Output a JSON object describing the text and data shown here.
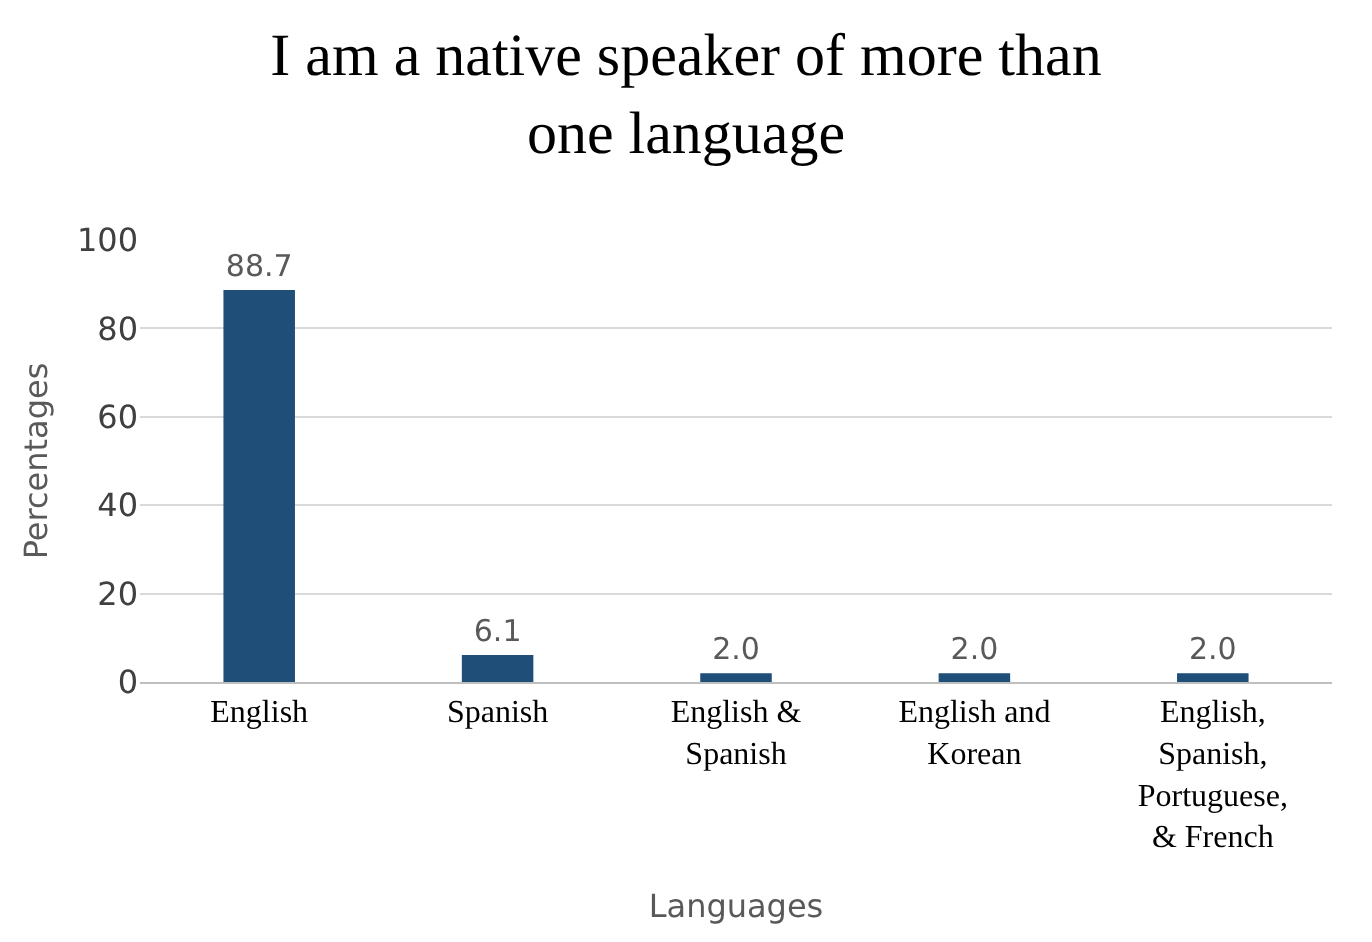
{
  "chart_data": {
    "type": "bar",
    "title": "I am a native speaker of more than one language",
    "xlabel": "Languages",
    "ylabel": "Percentages",
    "categories": [
      "English",
      "Spanish",
      "English & Spanish",
      "English and Korean",
      "English, Spanish, Portuguese, & French"
    ],
    "values": [
      88.7,
      6.1,
      2.0,
      2.0,
      2.0
    ],
    "value_labels": [
      "88.7",
      "6.1",
      "2.0",
      "2.0",
      "2.0"
    ],
    "color": "#1f4e79",
    "ylim": [
      0,
      100
    ],
    "yticks": [
      0,
      20,
      40,
      60,
      80,
      100
    ],
    "grid": "y"
  }
}
